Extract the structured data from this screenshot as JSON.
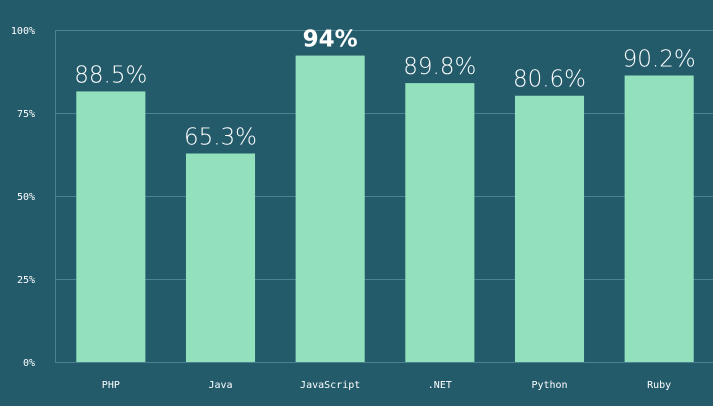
{
  "chart_data": {
    "type": "bar",
    "categories": [
      "PHP",
      "Java",
      "JavaScript",
      ".NET",
      "Python",
      "Ruby"
    ],
    "values": [
      88.5,
      65.3,
      94,
      89.8,
      80.6,
      90.2
    ],
    "display_values": [
      81.5,
      62.8,
      92.3,
      84,
      80.2,
      86.3
    ],
    "data_labels": [
      "88.5%",
      "65.3%",
      "94%",
      "89.8%",
      "80.6%",
      "90.2%"
    ],
    "highlight_index": 2,
    "y_ticks": [
      {
        "value": 0,
        "label": "0%"
      },
      {
        "value": 25,
        "label": "25%"
      },
      {
        "value": 50,
        "label": "50%"
      },
      {
        "value": 75,
        "label": "75%"
      },
      {
        "value": 100,
        "label": "100%"
      }
    ],
    "ylim": [
      0,
      100
    ],
    "title": "",
    "xlabel": "",
    "ylabel": "",
    "grid": true,
    "colors": {
      "background": "#245b6b",
      "bar": "#92e0bc",
      "grid": "#4d8290",
      "text": "#ffffff"
    }
  }
}
